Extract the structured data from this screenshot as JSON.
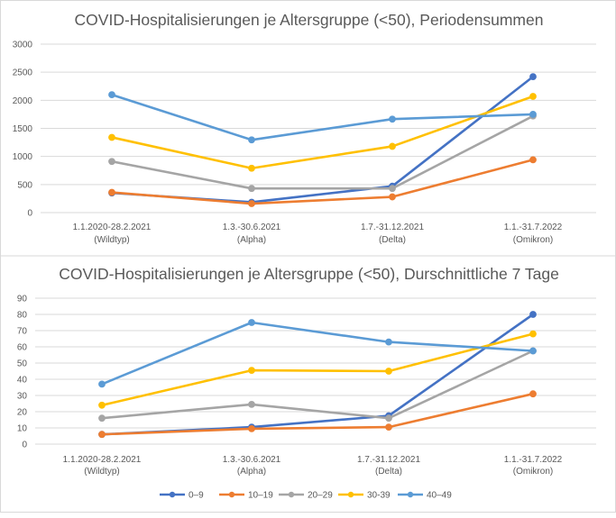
{
  "chart_data": [
    {
      "type": "line",
      "title": "COVID-Hospitalisierungen je Altersgruppe (<50), Periodensummen",
      "categories": [
        [
          "1.1.2020-28.2.2021",
          "(Wildtyp)"
        ],
        [
          "1.3.-30.6.2021",
          "(Alpha)"
        ],
        [
          "1.7.-31.12.2021",
          "(Delta)"
        ],
        [
          "1.1.-31.7.2022",
          "(Omikron)"
        ]
      ],
      "ylim": [
        0,
        3000
      ],
      "yticks": [
        "0",
        "500",
        "1000",
        "1500",
        "2000",
        "2500",
        "3000"
      ],
      "grid": true,
      "series": [
        {
          "name": "0–9",
          "color": "#4472C4",
          "values": [
            350,
            185,
            470,
            2420
          ]
        },
        {
          "name": "10–19",
          "color": "#ED7D31",
          "values": [
            360,
            160,
            280,
            940
          ]
        },
        {
          "name": "20–29",
          "color": "#A5A5A5",
          "values": [
            910,
            430,
            430,
            1720
          ]
        },
        {
          "name": "30-39",
          "color": "#FFC000",
          "values": [
            1340,
            790,
            1180,
            2070
          ]
        },
        {
          "name": "40–49",
          "color": "#5B9BD5",
          "values": [
            2100,
            1295,
            1665,
            1750
          ]
        }
      ]
    },
    {
      "type": "line",
      "title": "COVID-Hospitalisierungen je Altersgruppe (<50), Durschnittliche 7 Tage",
      "categories": [
        [
          "1.1.2020-28.2.2021",
          "(Wildtyp)"
        ],
        [
          "1.3.-30.6.2021",
          "(Alpha)"
        ],
        [
          "1.7.-31.12.2021",
          "(Delta)"
        ],
        [
          "1.1.-31.7.2022",
          "(Omikron)"
        ]
      ],
      "ylim": [
        0,
        90
      ],
      "yticks": [
        "0",
        "10",
        "20",
        "30",
        "40",
        "50",
        "60",
        "70",
        "80",
        "90"
      ],
      "grid": true,
      "legend_position": "bottom",
      "series": [
        {
          "name": "0–9",
          "color": "#4472C4",
          "values": [
            6,
            10.5,
            17.5,
            80
          ]
        },
        {
          "name": "10–19",
          "color": "#ED7D31",
          "values": [
            6,
            9.5,
            10.5,
            31
          ]
        },
        {
          "name": "20–29",
          "color": "#A5A5A5",
          "values": [
            16,
            24.5,
            16,
            57.5
          ]
        },
        {
          "name": "30-39",
          "color": "#FFC000",
          "values": [
            24,
            45.5,
            45,
            68
          ]
        },
        {
          "name": "40–49",
          "color": "#5B9BD5",
          "values": [
            37,
            75,
            63,
            57.5
          ]
        }
      ]
    }
  ]
}
